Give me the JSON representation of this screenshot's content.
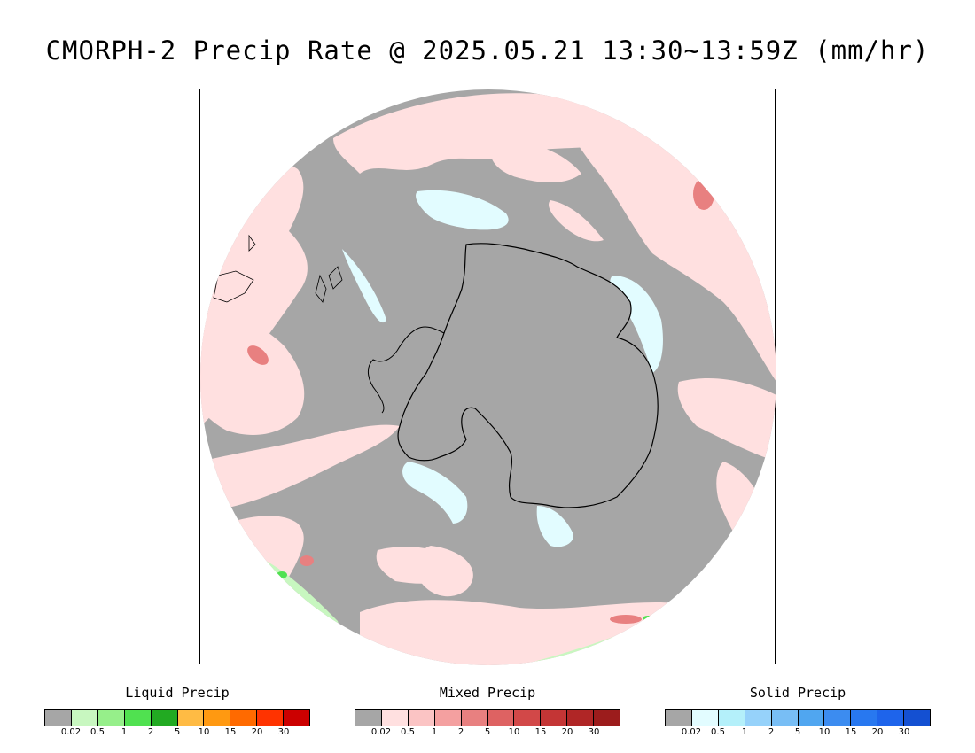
{
  "title": "CMORPH-2 Precip Rate @ 2025.05.21 13:30~13:59Z (mm/hr)",
  "legends": [
    {
      "label": "Liquid Precip",
      "colors": [
        "#a6a6a6",
        "#c8f7c0",
        "#96ef8a",
        "#50e150",
        "#22aa22",
        "#ffbb44",
        "#ff9911",
        "#ff6a00",
        "#ff3300",
        "#cc0000"
      ],
      "ticks": [
        "0.02",
        "0.5",
        "1",
        "2",
        "5",
        "10",
        "15",
        "20",
        "30"
      ]
    },
    {
      "label": "Mixed Precip",
      "colors": [
        "#a6a6a6",
        "#ffe0e0",
        "#fbc4c4",
        "#f4a0a0",
        "#e88080",
        "#de6262",
        "#d24848",
        "#c43535",
        "#b02626",
        "#9c1c1c"
      ],
      "ticks": [
        "0.02",
        "0.5",
        "1",
        "2",
        "5",
        "10",
        "15",
        "20",
        "30"
      ]
    },
    {
      "label": "Solid Precip",
      "colors": [
        "#a6a6a6",
        "#e2fcff",
        "#b4f0fa",
        "#96d2fa",
        "#78bef5",
        "#50a6f0",
        "#3c8cf0",
        "#2878f0",
        "#1e64eb",
        "#1450d2"
      ],
      "ticks": [
        "0.02",
        "0.5",
        "1",
        "2",
        "5",
        "10",
        "15",
        "20",
        "30"
      ]
    }
  ],
  "map": {
    "projection": "south-polar-stereographic",
    "background_color": "#a6a6a6",
    "mixed_light_color": "#ffe0e0",
    "mixed_medium_color": "#e88080",
    "solid_light_color": "#e2fcff",
    "liquid_light_color": "#c8f7c0",
    "liquid_medium_color": "#50e150",
    "coastline_color": "#000000"
  }
}
